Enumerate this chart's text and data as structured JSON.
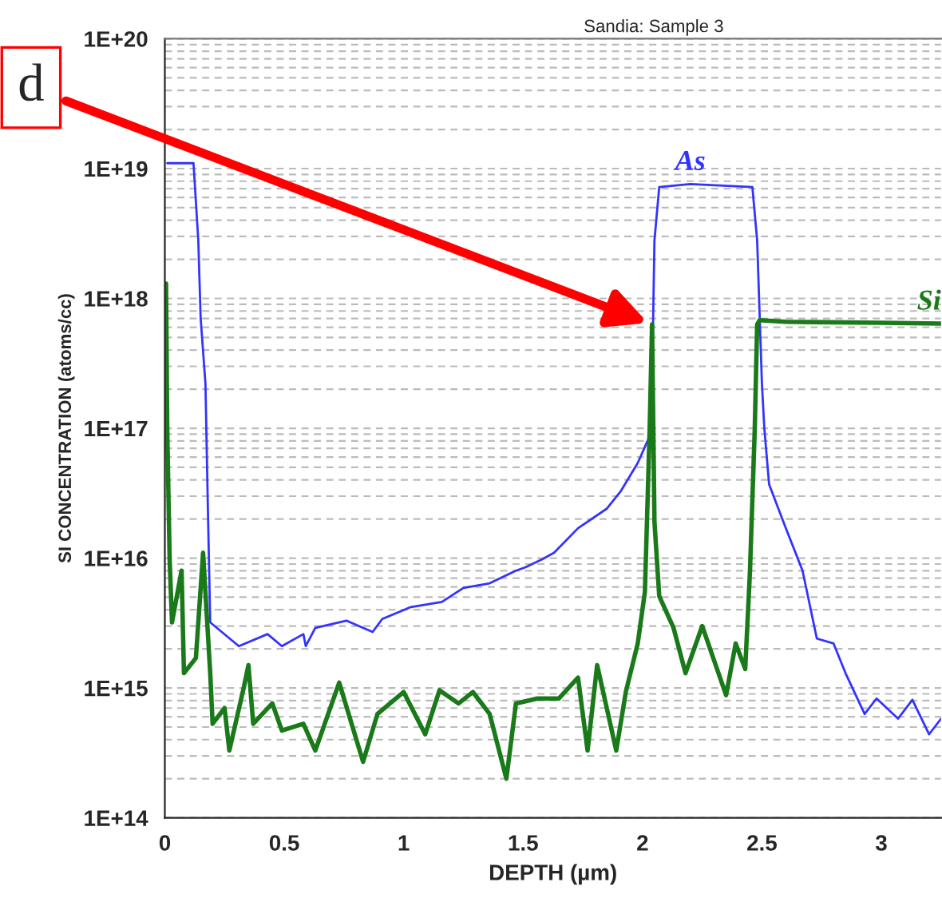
{
  "chart_data": {
    "type": "line",
    "title": "Sandia: Sample 3",
    "xlabel": "DEPTH (µm)",
    "ylabel": "SI CONCENTRATION (atoms/cc)",
    "log": "y",
    "grid": "y",
    "legend": false,
    "xlim": [
      0,
      3.25
    ],
    "xticks": [
      0,
      0.5,
      1,
      1.5,
      2,
      2.5,
      3
    ],
    "ylim": [
      100000000000000.0,
      1e+20
    ],
    "yticks": [
      {
        "value": 100000000000000.0,
        "label": "1E+14"
      },
      {
        "value": 1000000000000000.0,
        "label": "1E+15"
      },
      {
        "value": 1e+16,
        "label": "1E+16"
      },
      {
        "value": 1e+17,
        "label": "1E+17"
      },
      {
        "value": 1e+18,
        "label": "1E+18"
      },
      {
        "value": 1e+19,
        "label": "1E+19"
      },
      {
        "value": 1e+20,
        "label": "1E+20"
      }
    ],
    "annotations": [
      {
        "text": "d",
        "x": 2.04,
        "y": 6.3e+17
      }
    ],
    "series": [
      {
        "name": "As",
        "color": "#3333ff",
        "x": [
          0.01,
          0.12,
          0.14,
          0.15,
          0.17,
          0.18,
          0.19,
          0.31,
          0.43,
          0.49,
          0.58,
          0.59,
          0.63,
          0.76,
          0.87,
          0.91,
          1.03,
          1.16,
          1.25,
          1.36,
          1.47,
          1.51,
          1.58,
          1.63,
          1.73,
          1.85,
          1.91,
          1.98,
          2.03,
          2.04,
          2.05,
          2.07,
          2.2,
          2.46,
          2.48,
          2.5,
          2.51,
          2.53,
          2.6,
          2.67,
          2.73,
          2.8,
          2.85,
          2.93,
          2.98,
          3.07,
          3.13,
          3.2,
          3.25
        ],
        "values": [
          1.1e+19,
          1.1e+19,
          2.8e+18,
          7e+17,
          2.2e+17,
          2.5e+16,
          3200000000000000.0,
          2100000000000000.0,
          2600000000000000.0,
          2100000000000000.0,
          2600000000000000.0,
          2100000000000000.0,
          2900000000000000.0,
          3300000000000000.0,
          2700000000000000.0,
          3400000000000000.0,
          4200000000000000.0,
          4600000000000000.0,
          5900000000000000.0,
          6400000000000000.0,
          8000000000000000.0,
          8500000000000000.0,
          9800000000000000.0,
          1.1e+16,
          1.7e+16,
          2.4e+16,
          3.3e+16,
          5.4e+16,
          8.7e+16,
          2.2e+17,
          2.8e+18,
          7.2e+18,
          7.6e+18,
          7.2e+18,
          2.8e+18,
          2.2e+17,
          1e+17,
          3.7e+16,
          1.7e+16,
          8000000000000000.0,
          2400000000000000.0,
          2200000000000000.0,
          1300000000000000.0,
          630000000000000.0,
          830000000000000.0,
          580000000000000.0,
          810000000000000.0,
          440000000000000.0,
          580000000000000.0
        ]
      },
      {
        "name": "Si",
        "color": "#1a7a1a",
        "x": [
          0.005,
          0.01,
          0.02,
          0.03,
          0.07,
          0.08,
          0.13,
          0.16,
          0.19,
          0.2,
          0.25,
          0.27,
          0.33,
          0.35,
          0.37,
          0.45,
          0.49,
          0.58,
          0.63,
          0.73,
          0.83,
          0.89,
          1.0,
          1.09,
          1.15,
          1.23,
          1.29,
          1.36,
          1.43,
          1.47,
          1.56,
          1.65,
          1.73,
          1.77,
          1.81,
          1.89,
          1.93,
          1.98,
          2.01,
          2.03,
          2.04,
          2.05,
          2.07,
          2.13,
          2.18,
          2.25,
          2.35,
          2.39,
          2.43,
          2.45,
          2.47,
          2.48,
          2.49,
          2.6,
          3.0,
          3.25
        ],
        "values": [
          1.3e+18,
          1e+17,
          9800000000000000.0,
          3200000000000000.0,
          8000000000000000.0,
          1300000000000000.0,
          1700000000000000.0,
          1.1e+16,
          1300000000000000.0,
          530000000000000.0,
          700000000000000.0,
          330000000000000.0,
          1000000000000000.0,
          1500000000000000.0,
          530000000000000.0,
          760000000000000.0,
          470000000000000.0,
          530000000000000.0,
          330000000000000.0,
          1100000000000000.0,
          270000000000000.0,
          630000000000000.0,
          930000000000000.0,
          440000000000000.0,
          960000000000000.0,
          760000000000000.0,
          930000000000000.0,
          630000000000000.0,
          200000000000000.0,
          760000000000000.0,
          830000000000000.0,
          830000000000000.0,
          1200000000000000.0,
          330000000000000.0,
          1500000000000000.0,
          330000000000000.0,
          930000000000000.0,
          2200000000000000.0,
          5500000000000000.0,
          1e+17,
          6.3e+17,
          1.9e+16,
          5100000000000000.0,
          2900000000000000.0,
          1300000000000000.0,
          3000000000000000.0,
          880000000000000.0,
          2200000000000000.0,
          1400000000000000.0,
          8000000000000000.0,
          1e+17,
          6.3e+17,
          6.8e+17,
          6.6e+17,
          6.5e+17,
          6.4e+17
        ]
      }
    ]
  }
}
